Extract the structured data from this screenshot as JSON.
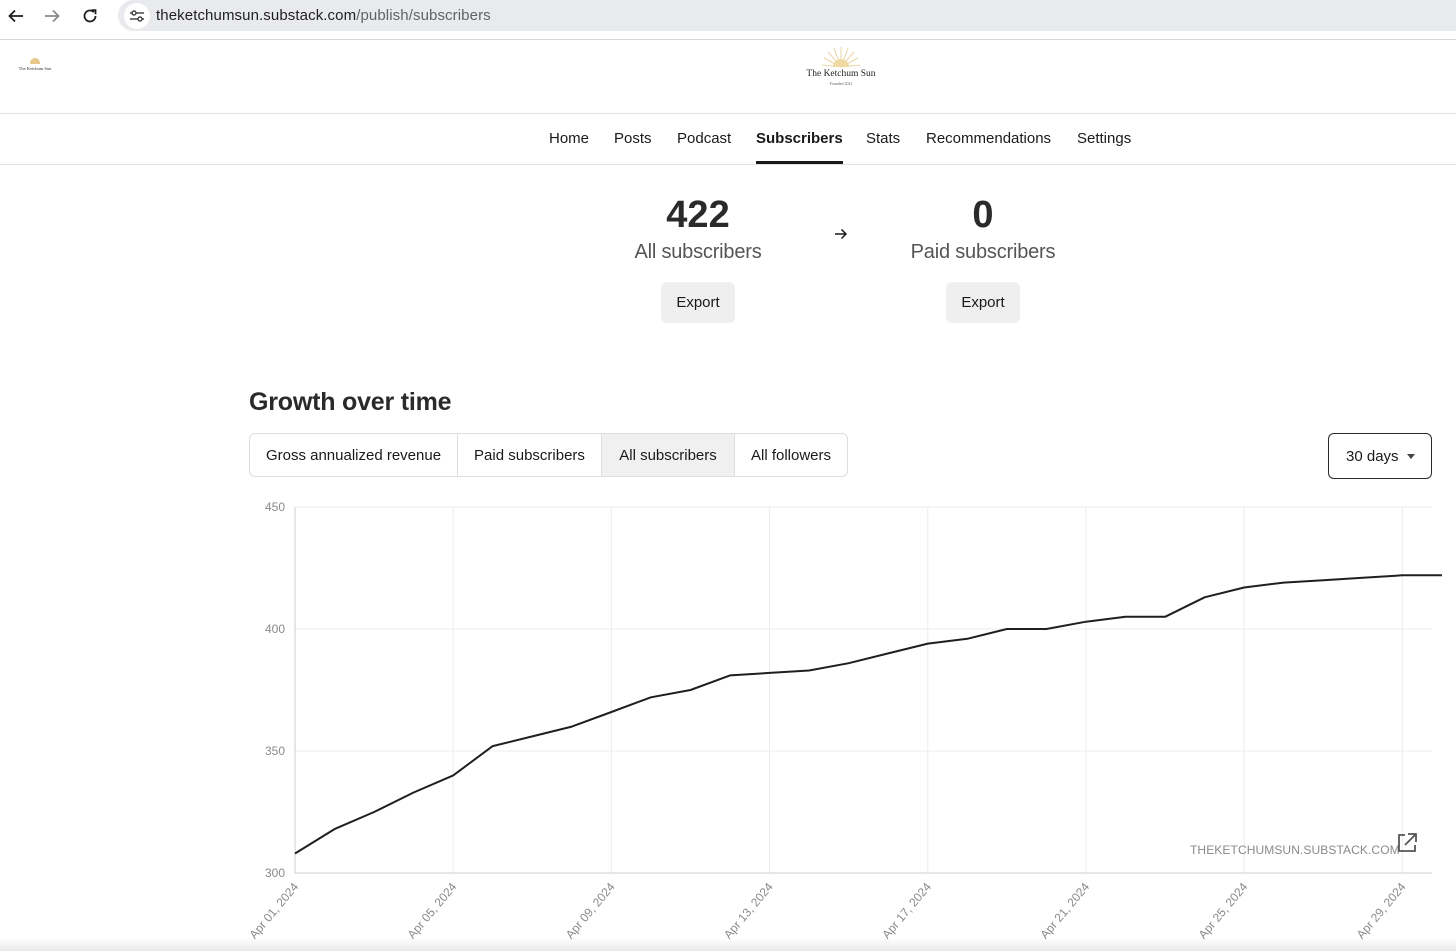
{
  "browser": {
    "url_host": "theketchumsun.substack.com",
    "url_path": "/publish/subscribers",
    "icons": [
      "back-arrow-icon",
      "forward-arrow-icon",
      "reload-icon",
      "site-settings-icon"
    ]
  },
  "header": {
    "small_logo_text": "The Ketchum Sun",
    "logo_name": "The Ketchum Sun",
    "logo_sub": "Founded 2021",
    "logo_color": "#e6c88a"
  },
  "tabs": [
    "Home",
    "Posts",
    "Podcast",
    "Subscribers",
    "Stats",
    "Recommendations",
    "Settings"
  ],
  "active_tab": "Subscribers",
  "stats": {
    "all_count": "422",
    "all_label": "All subscribers",
    "paid_count": "0",
    "paid_label": "Paid subscribers",
    "export_label": "Export"
  },
  "growth": {
    "title": "Growth over time",
    "segments": [
      "Gross annualized revenue",
      "Paid subscribers",
      "All subscribers",
      "All followers"
    ],
    "selected_segment": "All subscribers",
    "range": "30 days",
    "watermark": "THEKETCHUMSUN.SUBSTACK.COM"
  },
  "chart_data": {
    "type": "line",
    "title": "",
    "xlabel": "",
    "ylabel": "",
    "ylim": [
      300,
      450
    ],
    "y_ticks": [
      300,
      350,
      400,
      450
    ],
    "x_ticks": [
      "Apr 01, 2024",
      "Apr 05, 2024",
      "Apr 09, 2024",
      "Apr 13, 2024",
      "Apr 17, 2024",
      "Apr 21, 2024",
      "Apr 25, 2024",
      "Apr 29, 2024"
    ],
    "grid": true,
    "line_color": "#1f1f1f",
    "x": [
      "Apr 01, 2024",
      "Apr 02, 2024",
      "Apr 03, 2024",
      "Apr 04, 2024",
      "Apr 05, 2024",
      "Apr 06, 2024",
      "Apr 07, 2024",
      "Apr 08, 2024",
      "Apr 09, 2024",
      "Apr 10, 2024",
      "Apr 11, 2024",
      "Apr 12, 2024",
      "Apr 13, 2024",
      "Apr 14, 2024",
      "Apr 15, 2024",
      "Apr 16, 2024",
      "Apr 17, 2024",
      "Apr 18, 2024",
      "Apr 19, 2024",
      "Apr 20, 2024",
      "Apr 21, 2024",
      "Apr 22, 2024",
      "Apr 23, 2024",
      "Apr 24, 2024",
      "Apr 25, 2024",
      "Apr 26, 2024",
      "Apr 27, 2024",
      "Apr 28, 2024",
      "Apr 29, 2024",
      "Apr 30, 2024"
    ],
    "series": [
      {
        "values": [
          308,
          318,
          325,
          333,
          340,
          352,
          356,
          360,
          366,
          372,
          375,
          381,
          382,
          383,
          386,
          390,
          394,
          396,
          400,
          400,
          403,
          405,
          405,
          413,
          417,
          419,
          420,
          421,
          422,
          422
        ]
      }
    ]
  }
}
